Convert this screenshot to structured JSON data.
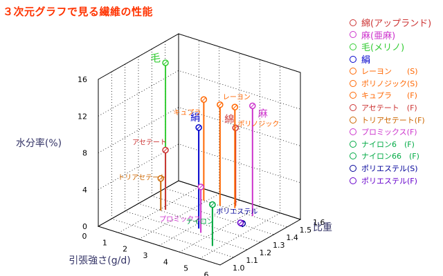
{
  "chart_data": {
    "type": "scatter",
    "subtype": "3d-stem",
    "title": "３次元グラフで見る繊維の性能",
    "title_color": "#ff3300",
    "xlabel": "引張強さ(g/d)",
    "ylabel": "水分率(%)",
    "zlabel": "比重",
    "xlim": [
      0,
      6
    ],
    "ylim": [
      0,
      16
    ],
    "zlim": [
      1.0,
      1.6
    ],
    "x_ticks": [
      "0",
      "1",
      "2",
      "3",
      "4",
      "5",
      "6"
    ],
    "y_ticks": [
      "0",
      "4",
      "8",
      "12",
      "16"
    ],
    "z_ticks": [
      "1.0",
      "1.1",
      "1.2",
      "1.3",
      "1.4",
      "1.5",
      "1.6"
    ],
    "grid": true,
    "legend_position": "right",
    "series": [
      {
        "name": "綿(アップランド)",
        "label": "綿",
        "x": 3.2,
        "moisture": 8.5,
        "density": 1.54,
        "color": "#cc3333",
        "big": true
      },
      {
        "name": "麻(亜麻)",
        "label": "麻",
        "x": 4.3,
        "moisture": 12.0,
        "density": 1.5,
        "color": "#cc33cc",
        "big": true
      },
      {
        "name": "毛(メリノ)",
        "label": "毛",
        "x": 1.2,
        "moisture": 16.0,
        "density": 1.32,
        "color": "#33cc33",
        "big": true
      },
      {
        "name": "絹",
        "label": "絹",
        "x": 3.3,
        "moisture": 11.0,
        "density": 1.25,
        "color": "#0000cc",
        "big": true
      },
      {
        "name": "レーヨン　　(S)",
        "label": "レーヨン",
        "x": 2.7,
        "moisture": 11.0,
        "density": 1.5,
        "color": "#ff6600",
        "big": false
      },
      {
        "name": "ポリノジック(S)",
        "label": "ポリノジック",
        "x": 3.3,
        "moisture": 11.0,
        "density": 1.52,
        "color": "#ff6600",
        "big": false
      },
      {
        "name": "キュプラ　　(F)",
        "label": "キュプラ",
        "x": 1.9,
        "moisture": 11.0,
        "density": 1.5,
        "color": "#ff6600",
        "big": false
      },
      {
        "name": "アセテート　(F)",
        "label": "アセテート",
        "x": 1.2,
        "moisture": 6.5,
        "density": 1.32,
        "color": "#cc3333",
        "big": false
      },
      {
        "name": "トリアセテート(F)",
        "label": "トリアセテート",
        "x": 1.1,
        "moisture": 3.5,
        "density": 1.3,
        "color": "#cc6600",
        "big": false
      },
      {
        "name": "プロミックス(F)",
        "label": "プロミックス",
        "x": 3.6,
        "moisture": 5.0,
        "density": 1.22,
        "color": "#cc33cc",
        "big": false
      },
      {
        "name": "ナイロン6　(F)",
        "label": "ナイロン6",
        "x": 4.7,
        "moisture": 4.5,
        "density": 1.14,
        "color": "#00aa44",
        "big": false
      },
      {
        "name": "ナイロン66　(F)",
        "label": "ナイロン66",
        "x": 4.7,
        "moisture": 4.5,
        "density": 1.14,
        "color": "#00aa44",
        "big": false
      },
      {
        "name": "ポリエステル(S)",
        "label": "ポリエステル",
        "x": 4.6,
        "moisture": 0.4,
        "density": 1.38,
        "color": "#000099",
        "big": false
      },
      {
        "name": "ポリエステル(F)",
        "label": "ポリエステル",
        "x": 4.5,
        "moisture": 0.4,
        "density": 1.38,
        "color": "#6600cc",
        "big": false
      }
    ],
    "plot_labels": [
      "毛",
      "キュプラ",
      "レーヨン",
      "ポリノジック",
      "絹",
      "綿",
      "麻",
      "アセテート",
      "トリアセテート",
      "プロミックス",
      "ポリエステル",
      "ナイロン"
    ]
  }
}
